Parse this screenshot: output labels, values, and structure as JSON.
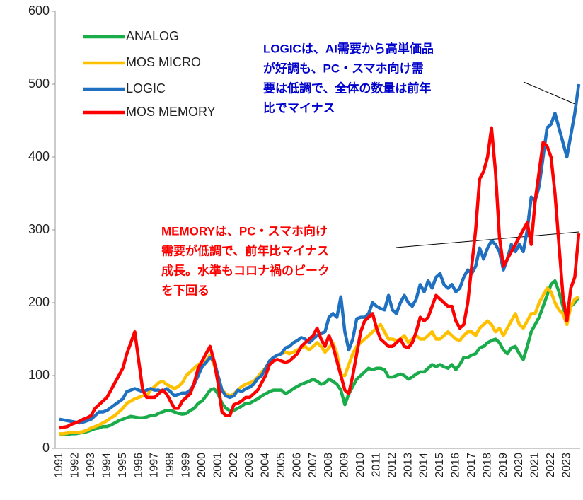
{
  "chart_data": {
    "type": "line",
    "categories": [
      "1991",
      null,
      null,
      null,
      "1992",
      null,
      null,
      null,
      "1993",
      null,
      null,
      null,
      "1994",
      null,
      null,
      null,
      "1995",
      null,
      null,
      null,
      "1996",
      null,
      null,
      null,
      "1997",
      null,
      null,
      null,
      "1998",
      null,
      null,
      null,
      "1999",
      null,
      null,
      null,
      "2000",
      null,
      null,
      null,
      "2001",
      null,
      null,
      null,
      "2002",
      null,
      null,
      null,
      "2003",
      null,
      null,
      null,
      "2004",
      null,
      null,
      null,
      "2005",
      null,
      null,
      null,
      "2006",
      null,
      null,
      null,
      "2007",
      null,
      null,
      null,
      "2008",
      null,
      null,
      null,
      "2009",
      null,
      null,
      null,
      "2010",
      null,
      null,
      null,
      "2011",
      null,
      null,
      null,
      "2012",
      null,
      null,
      null,
      "2013",
      null,
      null,
      null,
      "2014",
      null,
      null,
      null,
      "2015",
      null,
      null,
      null,
      "2016",
      null,
      null,
      null,
      "2017",
      null,
      null,
      null,
      "2018",
      null,
      null,
      null,
      "2019",
      null,
      null,
      null,
      "2020",
      null,
      null,
      null,
      "2021",
      null,
      null,
      null,
      "2022",
      null,
      null,
      null,
      "2023",
      null,
      null,
      null
    ],
    "series": [
      {
        "name": "ANALOG",
        "color": "#1aab4b",
        "values": [
          20,
          19,
          19,
          20,
          20,
          21,
          22,
          23,
          25,
          27,
          28,
          30,
          30,
          32,
          35,
          38,
          40,
          42,
          44,
          43,
          42,
          42,
          43,
          45,
          45,
          48,
          50,
          52,
          52,
          50,
          48,
          47,
          48,
          52,
          55,
          62,
          65,
          72,
          80,
          82,
          75,
          62,
          55,
          52,
          52,
          55,
          58,
          62,
          62,
          65,
          68,
          72,
          75,
          78,
          80,
          80,
          80,
          75,
          78,
          82,
          85,
          88,
          90,
          92,
          95,
          92,
          88,
          90,
          95,
          92,
          88,
          80,
          60,
          75,
          85,
          95,
          100,
          105,
          110,
          108,
          110,
          110,
          108,
          98,
          98,
          100,
          102,
          100,
          95,
          98,
          102,
          105,
          105,
          110,
          115,
          112,
          115,
          112,
          110,
          115,
          108,
          115,
          125,
          125,
          128,
          130,
          138,
          140,
          145,
          148,
          150,
          145,
          135,
          130,
          138,
          140,
          130,
          122,
          140,
          160,
          170,
          180,
          195,
          210,
          225,
          230,
          215,
          195,
          178,
          195,
          200,
          208
        ]
      },
      {
        "name": "MOS MICRO",
        "color": "#ffc000",
        "values": [
          20,
          20,
          21,
          22,
          22,
          22,
          23,
          25,
          28,
          30,
          32,
          35,
          38,
          42,
          45,
          50,
          55,
          62,
          65,
          68,
          70,
          72,
          72,
          80,
          85,
          90,
          92,
          88,
          85,
          82,
          85,
          90,
          100,
          105,
          110,
          115,
          118,
          120,
          128,
          115,
          100,
          80,
          75,
          72,
          75,
          80,
          85,
          88,
          90,
          92,
          98,
          105,
          110,
          120,
          125,
          128,
          130,
          132,
          130,
          132,
          135,
          138,
          140,
          135,
          140,
          145,
          140,
          132,
          138,
          145,
          130,
          100,
          100,
          115,
          130,
          140,
          145,
          150,
          155,
          160,
          165,
          170,
          160,
          150,
          150,
          148,
          150,
          155,
          145,
          150,
          155,
          150,
          150,
          155,
          160,
          150,
          150,
          155,
          160,
          155,
          150,
          148,
          155,
          160,
          160,
          155,
          165,
          170,
          175,
          170,
          160,
          165,
          155,
          165,
          175,
          185,
          170,
          165,
          175,
          185,
          185,
          200,
          210,
          220,
          215,
          200,
          190,
          185,
          170,
          195,
          205,
          208
        ]
      },
      {
        "name": "LOGIC",
        "color": "#1f70c1",
        "values": [
          40,
          39,
          38,
          37,
          36,
          35,
          36,
          38,
          40,
          45,
          50,
          50,
          52,
          56,
          60,
          64,
          68,
          78,
          80,
          82,
          80,
          78,
          80,
          82,
          80,
          80,
          78,
          82,
          78,
          72,
          74,
          76,
          76,
          80,
          88,
          100,
          112,
          118,
          125,
          120,
          100,
          80,
          72,
          70,
          72,
          80,
          78,
          82,
          84,
          88,
          96,
          100,
          110,
          120,
          125,
          128,
          130,
          138,
          140,
          145,
          148,
          152,
          150,
          145,
          150,
          155,
          158,
          160,
          180,
          185,
          180,
          208,
          160,
          135,
          150,
          178,
          180,
          180,
          185,
          200,
          195,
          192,
          190,
          210,
          190,
          185,
          200,
          210,
          200,
          195,
          205,
          225,
          215,
          230,
          220,
          235,
          240,
          225,
          220,
          225,
          215,
          220,
          235,
          245,
          240,
          250,
          275,
          260,
          275,
          285,
          280,
          270,
          245,
          260,
          280,
          270,
          280,
          270,
          300,
          345,
          340,
          360,
          400,
          440,
          445,
          460,
          440,
          420,
          400,
          430,
          460,
          500
        ]
      },
      {
        "name": "MOS MEMORY",
        "color": "#ff0000",
        "values": [
          28,
          29,
          30,
          33,
          35,
          37,
          40,
          42,
          45,
          55,
          60,
          65,
          70,
          80,
          90,
          100,
          110,
          130,
          145,
          160,
          120,
          80,
          70,
          70,
          70,
          75,
          80,
          75,
          65,
          55,
          55,
          65,
          70,
          75,
          90,
          110,
          120,
          130,
          140,
          120,
          90,
          50,
          45,
          45,
          60,
          62,
          65,
          70,
          70,
          75,
          80,
          90,
          100,
          115,
          120,
          122,
          120,
          118,
          120,
          125,
          130,
          140,
          145,
          150,
          155,
          165,
          150,
          140,
          155,
          140,
          120,
          100,
          80,
          75,
          100,
          130,
          160,
          175,
          180,
          185,
          165,
          150,
          145,
          140,
          140,
          145,
          150,
          140,
          138,
          145,
          160,
          180,
          175,
          180,
          195,
          210,
          205,
          200,
          195,
          195,
          175,
          165,
          170,
          200,
          250,
          300,
          370,
          380,
          400,
          440,
          380,
          290,
          250,
          260,
          270,
          280,
          290,
          300,
          310,
          280,
          340,
          380,
          420,
          415,
          400,
          350,
          280,
          210,
          175,
          220,
          235,
          295
        ]
      }
    ],
    "ylim": [
      0,
      600
    ],
    "yticks": [
      0,
      100,
      200,
      300,
      400,
      500,
      600
    ],
    "annotations": [
      {
        "color": "#0000cc",
        "lines": [
          "LOGICは、AI需要から高単価品",
          "が好調も、PC・スマホ向け需",
          "要は低調で、全体の数量は前年",
          "比でマイナス"
        ]
      },
      {
        "color": "#ff0000",
        "lines": [
          "MEMORYは、PC・スマホ向け",
          "需要が低調で、前年比マイナス",
          "成長。水準もコロナ禍のピーク",
          "を下回る"
        ]
      }
    ]
  }
}
